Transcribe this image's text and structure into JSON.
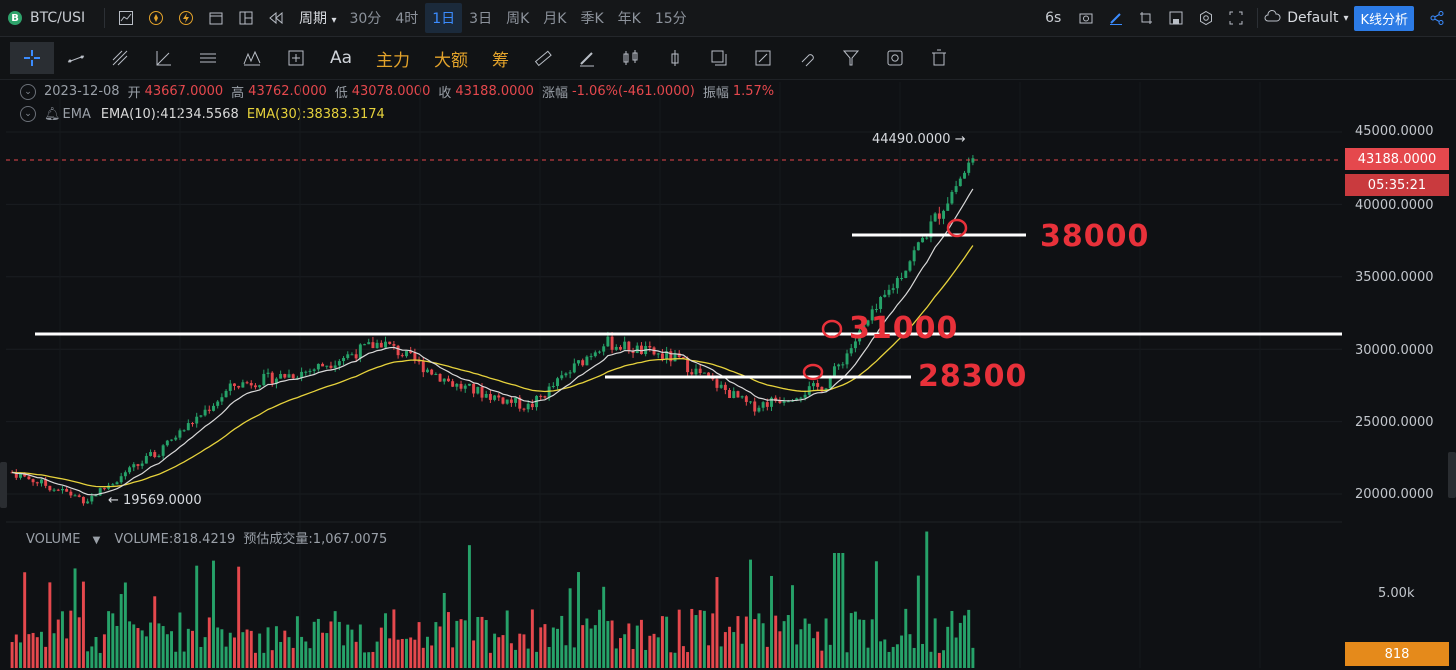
{
  "topbar": {
    "symbol": "BTC/USI",
    "period_label": "周期",
    "timeframes": [
      "30分",
      "4时",
      "1日",
      "3日",
      "周K",
      "月K",
      "季K",
      "年K",
      "15分"
    ],
    "active_timeframe": "1日",
    "refresh": "6s",
    "theme": "Default",
    "analysis_button": "K线分析"
  },
  "toolbar": {
    "text_tool": "Aa",
    "main_force": "主力",
    "big_amount": "大额",
    "chips": "筹"
  },
  "ohlc": {
    "date": "2023-12-08",
    "open_label": "开",
    "open": "43667.0000",
    "high_label": "高",
    "high": "43762.0000",
    "low_label": "低",
    "low": "43078.0000",
    "close_label": "收",
    "close": "43188.0000",
    "change_label": "涨幅",
    "change": "-1.06%(-461.0000)",
    "amplitude_label": "振幅",
    "amplitude": "1.57%"
  },
  "ema": {
    "name": "EMA",
    "ema10": "EMA(10):41234.5568",
    "ema30": "EMA(30):38383.3174"
  },
  "volume": {
    "name": "VOLUME",
    "value": "VOLUME:818.4219",
    "estimate": "预估成交量:1,067.0075",
    "axis_label": "5.00k",
    "current": "818"
  },
  "price_axis": {
    "labels": [
      "45000.0000",
      "40000.0000",
      "35000.0000",
      "30000.0000",
      "25000.0000",
      "20000.0000"
    ],
    "current_price": "43188.0000",
    "countdown": "05:35:21"
  },
  "markers": {
    "high_label": "44490.0000 →",
    "low_label": "← 19569.0000"
  },
  "annotations": {
    "level_38000": "38000",
    "level_31000": "31000",
    "level_28300": "28300"
  },
  "colors": {
    "up": "#26a269",
    "down": "#e5484d",
    "ema10": "#d9d9d9",
    "ema30": "#e6d23c",
    "annotation": "#e8313a"
  },
  "chart_data": {
    "type": "candlestick",
    "x_range": [
      "2022-10",
      "2023-12-08"
    ],
    "ylim": [
      19000,
      46000
    ],
    "price_levels": [
      38000,
      31000,
      28300
    ],
    "high": 44490,
    "low": 19569,
    "current": 43188,
    "trend_points": [
      {
        "x": "2022-11",
        "y": 21500
      },
      {
        "x": "2022-12",
        "y": 19569
      },
      {
        "x": "2023-01",
        "y": 23000
      },
      {
        "x": "2023-02",
        "y": 27500
      },
      {
        "x": "2023-03",
        "y": 28500
      },
      {
        "x": "2023-04",
        "y": 30500
      },
      {
        "x": "2023-05",
        "y": 27500
      },
      {
        "x": "2023-06",
        "y": 26000
      },
      {
        "x": "2023-07",
        "y": 30500
      },
      {
        "x": "2023-08",
        "y": 29300
      },
      {
        "x": "2023-09",
        "y": 26000
      },
      {
        "x": "2023-10",
        "y": 27500
      },
      {
        "x": "2023-11",
        "y": 35000
      },
      {
        "x": "2023-12",
        "y": 43188
      }
    ]
  }
}
